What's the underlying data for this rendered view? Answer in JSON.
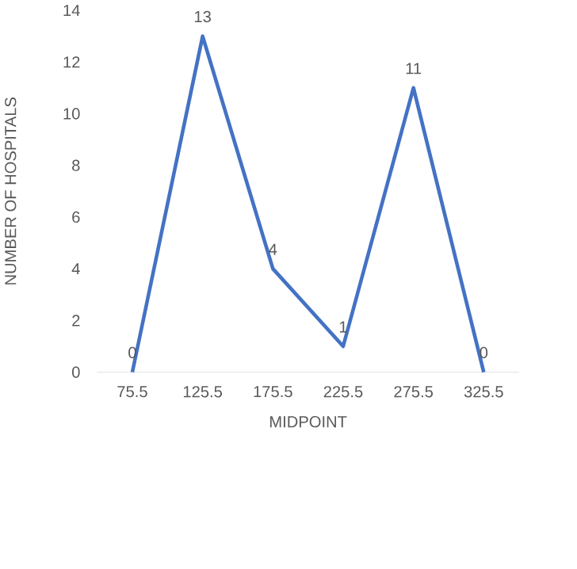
{
  "chart_data": {
    "type": "line",
    "xlabel": "MIDPOINT",
    "ylabel": "NUMBER OF HOSPITALS",
    "categories": [
      "75.5",
      "125.5",
      "175.5",
      "225.5",
      "275.5",
      "325.5"
    ],
    "values": [
      0,
      13,
      4,
      1,
      11,
      0
    ],
    "color": "#4472c4",
    "ylim": [
      0,
      14
    ],
    "yticks": [
      0,
      2,
      4,
      6,
      8,
      10,
      12,
      14
    ],
    "data_labels": true,
    "marker": "none",
    "line_style": "solid"
  }
}
